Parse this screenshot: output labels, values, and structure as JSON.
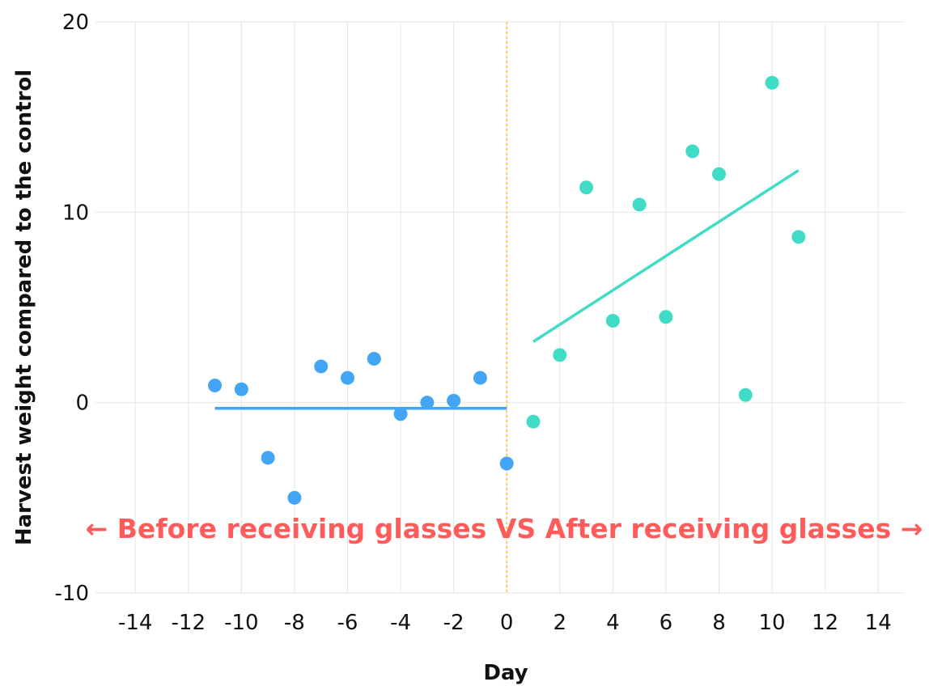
{
  "chart_data": {
    "type": "scatter",
    "title": "",
    "xlabel": "Day",
    "ylabel": "Harvest weight compared to the control",
    "xlim": [
      -15.5,
      15
    ],
    "ylim": [
      -10,
      20
    ],
    "x_ticks": [
      -14,
      -12,
      -10,
      -8,
      -6,
      -4,
      -2,
      0,
      2,
      4,
      6,
      8,
      10,
      12,
      14
    ],
    "y_ticks": [
      -10,
      0,
      10,
      20
    ],
    "grid": true,
    "legend": "none",
    "divider_x": 0,
    "annotation": "← Before receiving glasses VS After receiving glasses →",
    "colors": {
      "before": "#42a5f5",
      "after": "#40dcc6",
      "divider": "#ffcc4d",
      "annotation": "#ff5b5b",
      "grid": "#e6e6e6"
    },
    "series": [
      {
        "key": "before",
        "points": [
          {
            "x": -11,
            "y": 0.9
          },
          {
            "x": -10,
            "y": 0.7
          },
          {
            "x": -9,
            "y": -2.9
          },
          {
            "x": -8,
            "y": -5.0
          },
          {
            "x": -7,
            "y": 1.9
          },
          {
            "x": -6,
            "y": 1.3
          },
          {
            "x": -5,
            "y": 2.3
          },
          {
            "x": -4,
            "y": -0.6
          },
          {
            "x": -3,
            "y": 0.0
          },
          {
            "x": -2,
            "y": 0.1
          },
          {
            "x": -1,
            "y": 1.3
          },
          {
            "x": 0,
            "y": -3.2
          }
        ],
        "trend": {
          "x": [
            -11,
            0
          ],
          "y": [
            -0.3,
            -0.3
          ]
        }
      },
      {
        "key": "after",
        "points": [
          {
            "x": 1,
            "y": -1.0
          },
          {
            "x": 2,
            "y": 2.5
          },
          {
            "x": 3,
            "y": 11.3
          },
          {
            "x": 4,
            "y": 4.3
          },
          {
            "x": 5,
            "y": 10.4
          },
          {
            "x": 6,
            "y": 4.5
          },
          {
            "x": 7,
            "y": 13.2
          },
          {
            "x": 8,
            "y": 12.0
          },
          {
            "x": 9,
            "y": 0.4
          },
          {
            "x": 10,
            "y": 16.8
          },
          {
            "x": 11,
            "y": 8.7
          }
        ],
        "trend": {
          "x": [
            1,
            11
          ],
          "y": [
            3.2,
            12.2
          ]
        }
      }
    ]
  }
}
